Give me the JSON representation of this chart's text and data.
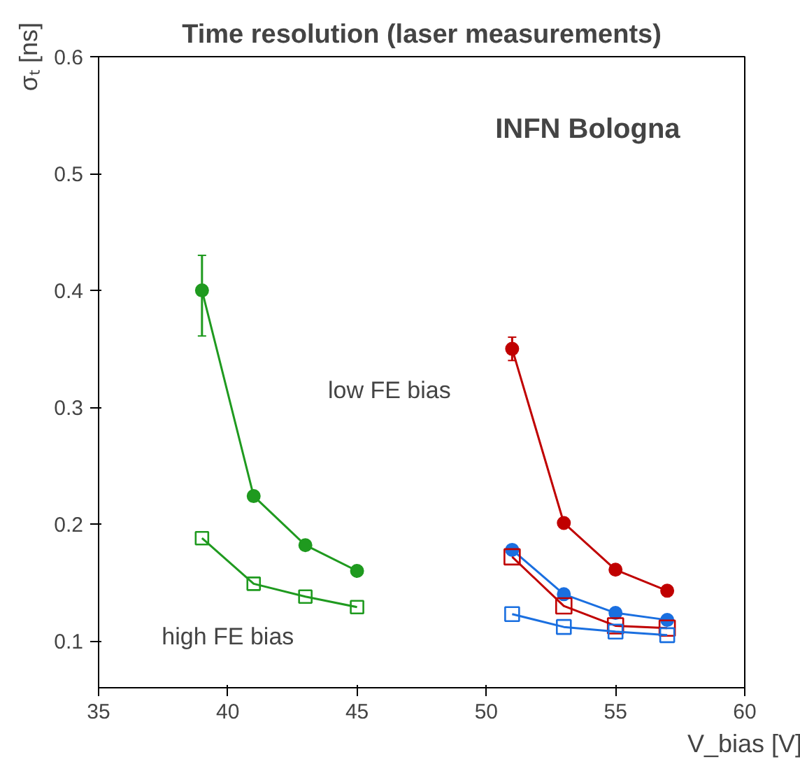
{
  "chart_data": {
    "type": "line",
    "title": "Time resolution (laser measurements)",
    "xlabel": "V_bias [V]",
    "ylabel": "σₜ [ns]",
    "xlim": [
      35,
      60
    ],
    "xticks": [
      35,
      40,
      45,
      50,
      55,
      60
    ],
    "ylim": [
      0.06,
      0.6
    ],
    "yticks": [
      0.1,
      0.2,
      0.3,
      0.4,
      0.5,
      0.6
    ],
    "grid": false,
    "annotations": [
      "INFN Bologna",
      "low FE bias",
      "high FE bias"
    ],
    "series": [
      {
        "color": "#c00000",
        "marker": "circle",
        "x": [
          51,
          53,
          55,
          57
        ],
        "values": [
          0.35,
          0.201,
          0.161,
          0.143
        ],
        "errors": [
          0.01,
          null,
          null,
          null
        ]
      },
      {
        "color": "#1a6fe0",
        "marker": "circle",
        "x": [
          51,
          53,
          55,
          57
        ],
        "values": [
          0.178,
          0.14,
          0.124,
          0.118
        ]
      },
      {
        "color": "#1f9a1f",
        "marker": "circle",
        "x": [
          39,
          41,
          43,
          45
        ],
        "values": [
          0.4,
          0.224,
          0.182,
          0.16
        ],
        "errors": [
          [
            0.361,
            0.43
          ],
          null,
          null,
          null
        ]
      },
      {
        "color": "#c00000",
        "marker": "square",
        "x": [
          51,
          53,
          55,
          57
        ],
        "values": [
          0.172,
          0.13,
          0.113,
          0.111
        ]
      },
      {
        "color": "#1a6fe0",
        "marker": "square",
        "x": [
          51,
          53,
          55,
          57
        ],
        "values": [
          0.123,
          0.112,
          0.108,
          0.105
        ]
      },
      {
        "color": "#1f9a1f",
        "marker": "square",
        "x": [
          39,
          41,
          43,
          45
        ],
        "values": [
          0.188,
          0.149,
          0.138,
          0.129
        ]
      }
    ]
  }
}
